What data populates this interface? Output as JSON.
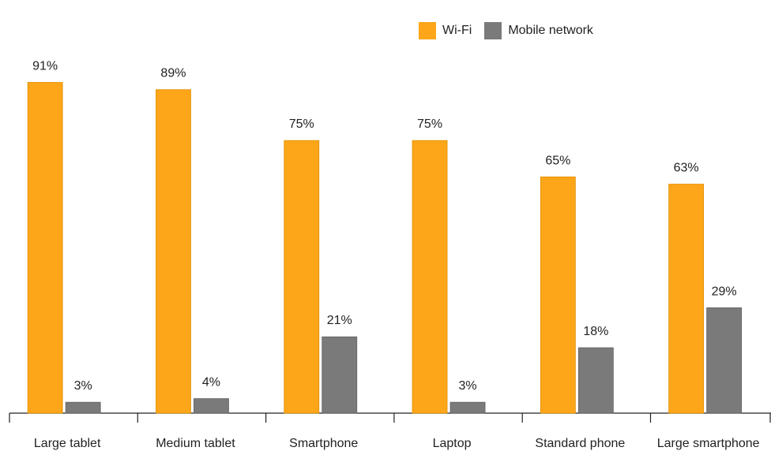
{
  "colors": {
    "wifi": "#FDA619",
    "mobile": "#7A7A7A",
    "axis": "#222222"
  },
  "chart_data": {
    "type": "bar",
    "categories": [
      "Large tablet",
      "Medium tablet",
      "Smartphone",
      "Laptop",
      "Standard phone",
      "Large smartphone"
    ],
    "series": [
      {
        "name": "Wi-Fi",
        "values": [
          91,
          89,
          75,
          75,
          65,
          63
        ],
        "labels": [
          "91%",
          "89%",
          "75%",
          "75%",
          "65%",
          "63%"
        ]
      },
      {
        "name": "Mobile network",
        "values": [
          3,
          4,
          21,
          3,
          18,
          29
        ],
        "labels": [
          "3%",
          "4%",
          "21%",
          "3%",
          "18%",
          "29%"
        ]
      }
    ],
    "ylim": [
      0,
      100
    ],
    "legend": "top-right",
    "grid": false
  }
}
